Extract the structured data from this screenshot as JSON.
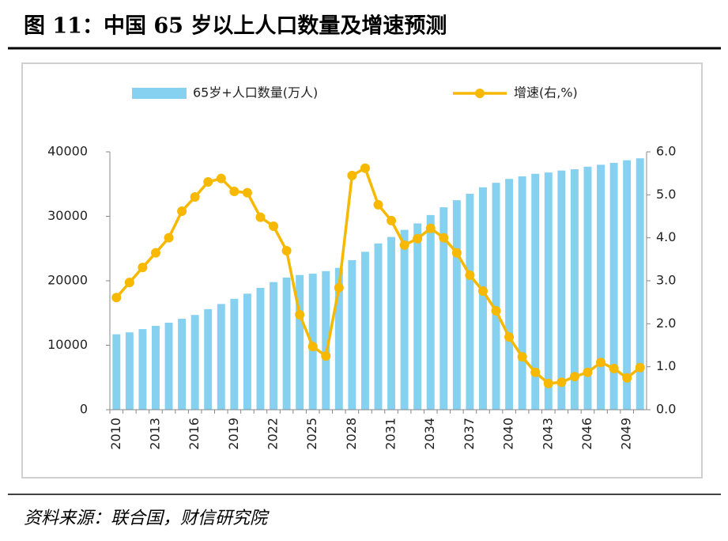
{
  "chart_data": {
    "type": "bar_line",
    "title": "图 11：中国 65 岁以上人口数量及增速预测",
    "source": "资料来源：联合国，财信研究院",
    "categories": [
      "2010",
      null,
      null,
      "2013",
      null,
      null,
      "2016",
      null,
      null,
      "2019",
      null,
      null,
      "2022",
      null,
      null,
      "2025",
      null,
      null,
      "2028",
      null,
      null,
      "2031",
      null,
      null,
      "2034",
      null,
      null,
      "2037",
      null,
      null,
      "2040",
      null,
      null,
      "2043",
      null,
      null,
      "2046",
      null,
      null,
      "2049",
      null
    ],
    "series": [
      {
        "name": "65岁+人口数量(万人)",
        "type": "bar",
        "axis": "y",
        "color": "#86d1f0",
        "values": [
          11700,
          12000,
          12500,
          13000,
          13500,
          14100,
          14700,
          15600,
          16400,
          17200,
          18000,
          18900,
          19800,
          20500,
          20900,
          21100,
          21500,
          22000,
          23200,
          24500,
          25800,
          26800,
          27900,
          28900,
          30200,
          31400,
          32500,
          33500,
          34500,
          35200,
          35800,
          36200,
          36600,
          36800,
          37100,
          37300,
          37700,
          38000,
          38300,
          38700,
          39000
        ]
      },
      {
        "name": "增速(右,%)",
        "type": "line",
        "axis": "y2",
        "color": "#f7b800",
        "values": [
          2.61,
          2.96,
          3.31,
          3.65,
          4.0,
          4.62,
          4.95,
          5.3,
          5.38,
          5.08,
          5.05,
          4.48,
          4.27,
          3.7,
          2.21,
          1.47,
          1.25,
          2.84,
          5.45,
          5.62,
          4.77,
          4.4,
          3.83,
          3.98,
          4.22,
          4.0,
          3.65,
          3.13,
          2.76,
          2.3,
          1.69,
          1.23,
          0.87,
          0.61,
          0.64,
          0.77,
          0.87,
          1.1,
          0.96,
          0.74,
          0.98
        ]
      }
    ],
    "ylim": [
      0,
      40000
    ],
    "yticks": [
      0,
      10000,
      20000,
      30000,
      40000
    ],
    "y2lim": [
      0,
      6
    ],
    "y2ticks": [
      {
        "value": 0,
        "label": "0.0"
      },
      {
        "value": 1,
        "label": "1.0"
      },
      {
        "value": 2,
        "label": "2.0"
      },
      {
        "value": 3,
        "label": "3.0"
      },
      {
        "value": 4,
        "label": "4.0"
      },
      {
        "value": 5,
        "label": "5.0"
      },
      {
        "value": 6,
        "label": "6.0"
      }
    ],
    "legend": "top"
  }
}
